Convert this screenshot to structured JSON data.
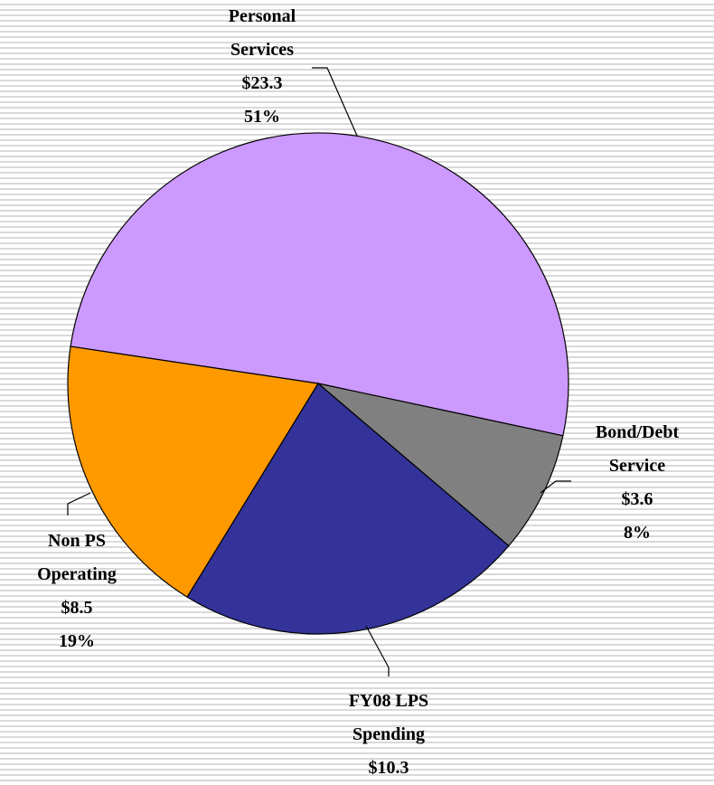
{
  "chart_data": {
    "type": "pie",
    "categories": [
      "Personal Services",
      "Bond/Debt Service",
      "FY08 LPS Spending",
      "Non PS Operating"
    ],
    "values": [
      23.3,
      3.6,
      10.3,
      8.5
    ],
    "value_labels": [
      "$23.3",
      "$3.6",
      "$10.3",
      "$8.5"
    ],
    "percent_labels": [
      "51%",
      "8%",
      null,
      "19%"
    ],
    "colors": [
      "#cc99ff",
      "#808080",
      "#333399",
      "#ff9900"
    ]
  }
}
